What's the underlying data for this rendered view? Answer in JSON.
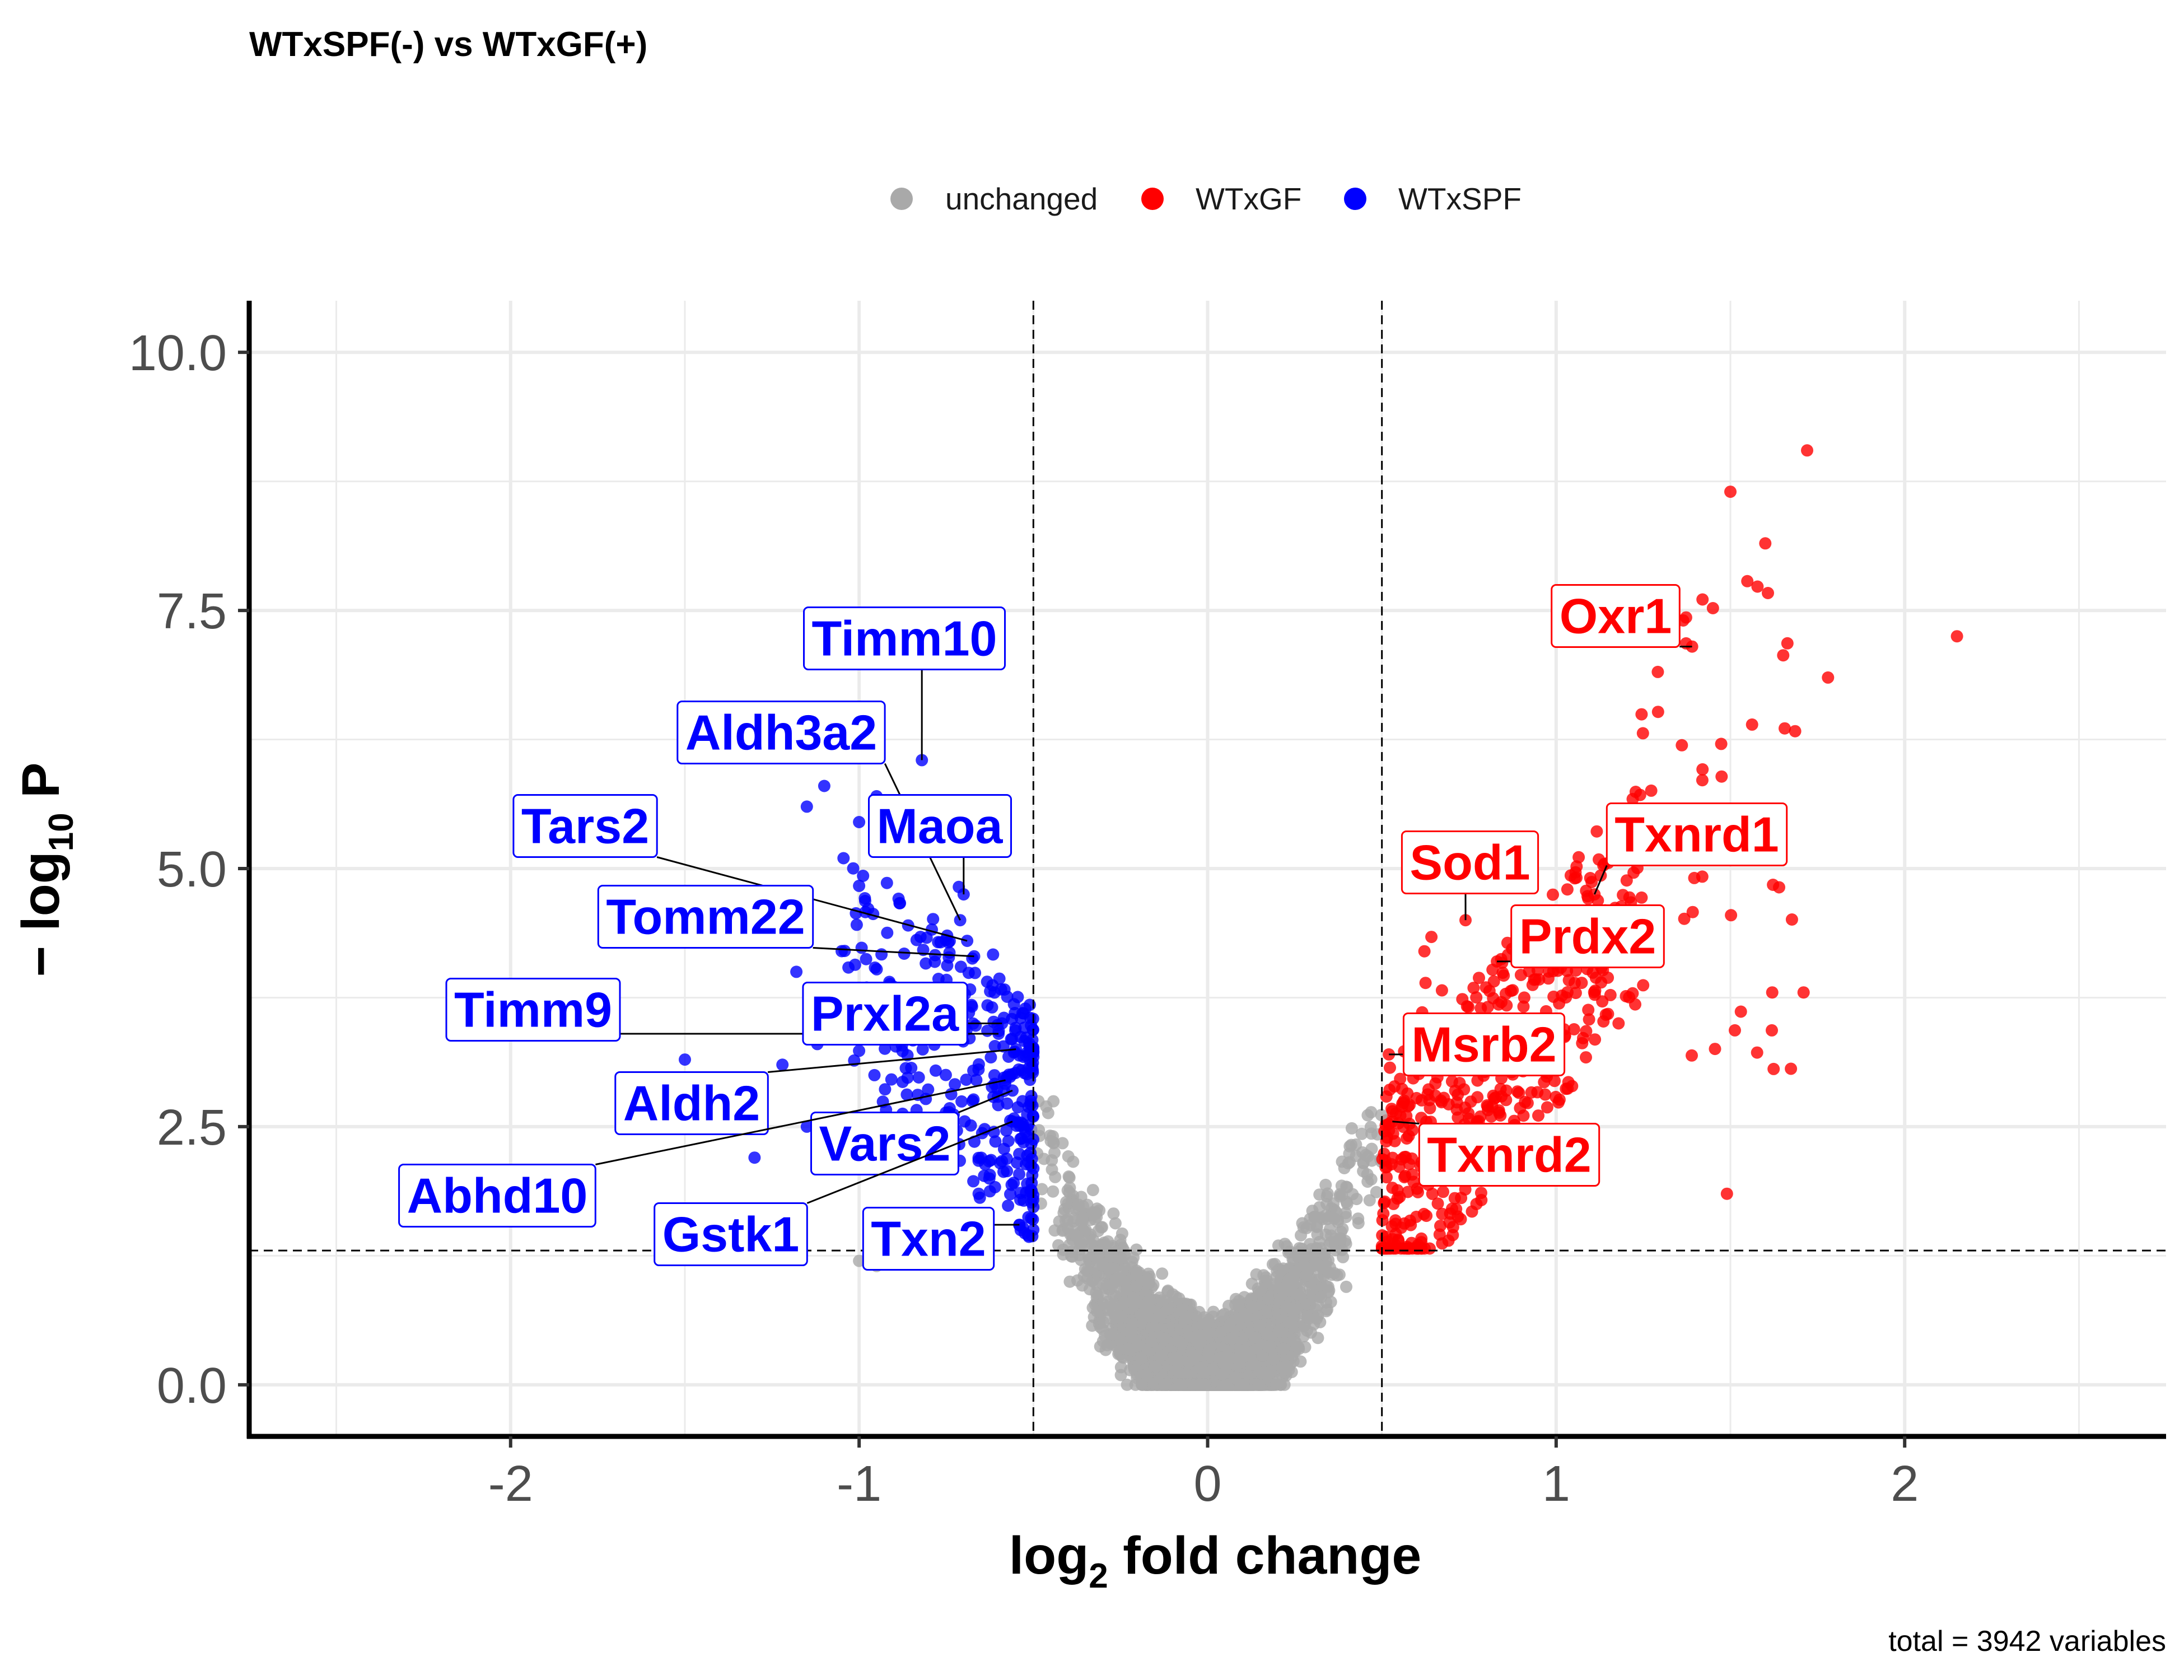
{
  "chart_data": {
    "type": "scatter",
    "title": "WTxSPF(-) vs WTxGF(+)",
    "xlabel_main": "log",
    "xlabel_sub": "2",
    "xlabel_rest": " fold change",
    "ylabel_pre": "− log",
    "ylabel_sub": "10",
    "ylabel_rest": " P",
    "caption": "total = 3942 variables",
    "xlim": [
      -2.75,
      2.75
    ],
    "ylim": [
      -0.5,
      10.5
    ],
    "x_ticks": [
      -2,
      -1,
      0,
      1,
      2
    ],
    "x_tick_labels": [
      "-2",
      "-1",
      "0",
      "1",
      "2"
    ],
    "y_ticks": [
      0,
      2.5,
      5,
      7.5,
      10
    ],
    "y_tick_labels": [
      "0.0",
      "2.5",
      "5.0",
      "7.5",
      "10.0"
    ],
    "fc_cutoff": 0.5,
    "p_cutoff_log": 1.3,
    "total_points": 3942,
    "grid": true,
    "legend_position": "top",
    "legend": [
      {
        "name": "unchanged",
        "color": "#a9a9a9"
      },
      {
        "name": "WTxGF",
        "color": "#ff0000"
      },
      {
        "name": "WTxSPF",
        "color": "#0000ff"
      }
    ],
    "labeled_genes": [
      {
        "gene": "Timm10",
        "x": -0.82,
        "y": 6.05,
        "group": "WTxSPF"
      },
      {
        "gene": "Aldh3a2",
        "x": -0.71,
        "y": 4.5,
        "group": "WTxSPF"
      },
      {
        "gene": "Maoa",
        "x": -0.7,
        "y": 4.75,
        "group": "WTxSPF"
      },
      {
        "gene": "Tars2",
        "x": -0.69,
        "y": 4.3,
        "group": "WTxSPF"
      },
      {
        "gene": "Tomm22",
        "x": -0.67,
        "y": 4.15,
        "group": "WTxSPF"
      },
      {
        "gene": "Timm9",
        "x": -0.6,
        "y": 3.4,
        "group": "WTxSPF"
      },
      {
        "gene": "Prxl2a",
        "x": -0.59,
        "y": 3.5,
        "group": "WTxSPF"
      },
      {
        "gene": "Aldh2",
        "x": -0.55,
        "y": 3.25,
        "group": "WTxSPF"
      },
      {
        "gene": "Vars2",
        "x": -0.56,
        "y": 2.85,
        "group": "WTxSPF"
      },
      {
        "gene": "Abhd10",
        "x": -0.58,
        "y": 2.95,
        "group": "WTxSPF"
      },
      {
        "gene": "Gstk1",
        "x": -0.56,
        "y": 2.55,
        "group": "WTxSPF"
      },
      {
        "gene": "Txn2",
        "x": -0.54,
        "y": 1.55,
        "group": "WTxSPF"
      },
      {
        "gene": "Oxr1",
        "x": 1.39,
        "y": 7.15,
        "group": "WTxGF"
      },
      {
        "gene": "Txnrd1",
        "x": 1.11,
        "y": 4.75,
        "group": "WTxGF"
      },
      {
        "gene": "Sod1",
        "x": 0.74,
        "y": 4.5,
        "group": "WTxGF"
      },
      {
        "gene": "Prdx2",
        "x": 0.83,
        "y": 4.1,
        "group": "WTxGF"
      },
      {
        "gene": "Msrb2",
        "x": 0.52,
        "y": 3.2,
        "group": "WTxGF"
      },
      {
        "gene": "Txnrd2",
        "x": 0.53,
        "y": 2.55,
        "group": "WTxGF"
      }
    ]
  }
}
